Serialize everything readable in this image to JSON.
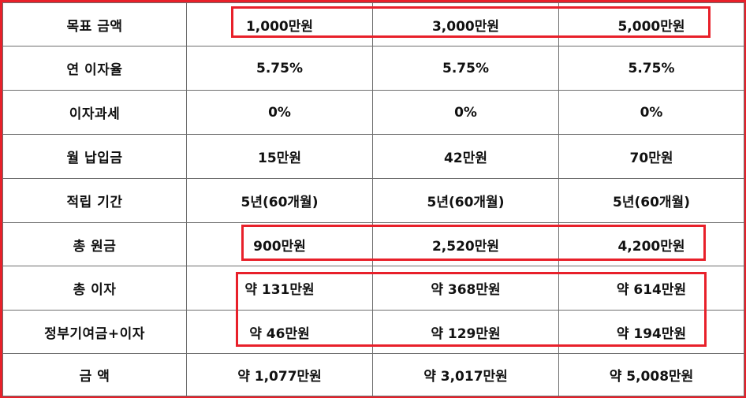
{
  "colors": {
    "highlight": "#e8202a",
    "grid": "#6e6e6e"
  },
  "rows": [
    {
      "label": "목표 금액",
      "values": [
        "1,000만원",
        "3,000만원",
        "5,000만원"
      ]
    },
    {
      "label": "연 이자율",
      "values": [
        "5.75%",
        "5.75%",
        "5.75%"
      ]
    },
    {
      "label": "이자과세",
      "values": [
        "0%",
        "0%",
        "0%"
      ]
    },
    {
      "label": "월 납입금",
      "values": [
        "15만원",
        "42만원",
        "70만원"
      ]
    },
    {
      "label": "적립 기간",
      "values": [
        "5년(60개월)",
        "5년(60개월)",
        "5년(60개월)"
      ]
    },
    {
      "label": "총 원금",
      "values": [
        "900만원",
        "2,520만원",
        "4,200만원"
      ]
    },
    {
      "label": "총 이자",
      "values": [
        "약 131만원",
        "약 368만원",
        "약 614만원"
      ]
    },
    {
      "label": "정부기여금+이자",
      "values": [
        "약 46만원",
        "약 129만원",
        "약 194만원"
      ]
    },
    {
      "label": "금 액",
      "values": [
        "약 1,077만원",
        "약 3,017만원",
        "약 5,008만원"
      ]
    }
  ]
}
